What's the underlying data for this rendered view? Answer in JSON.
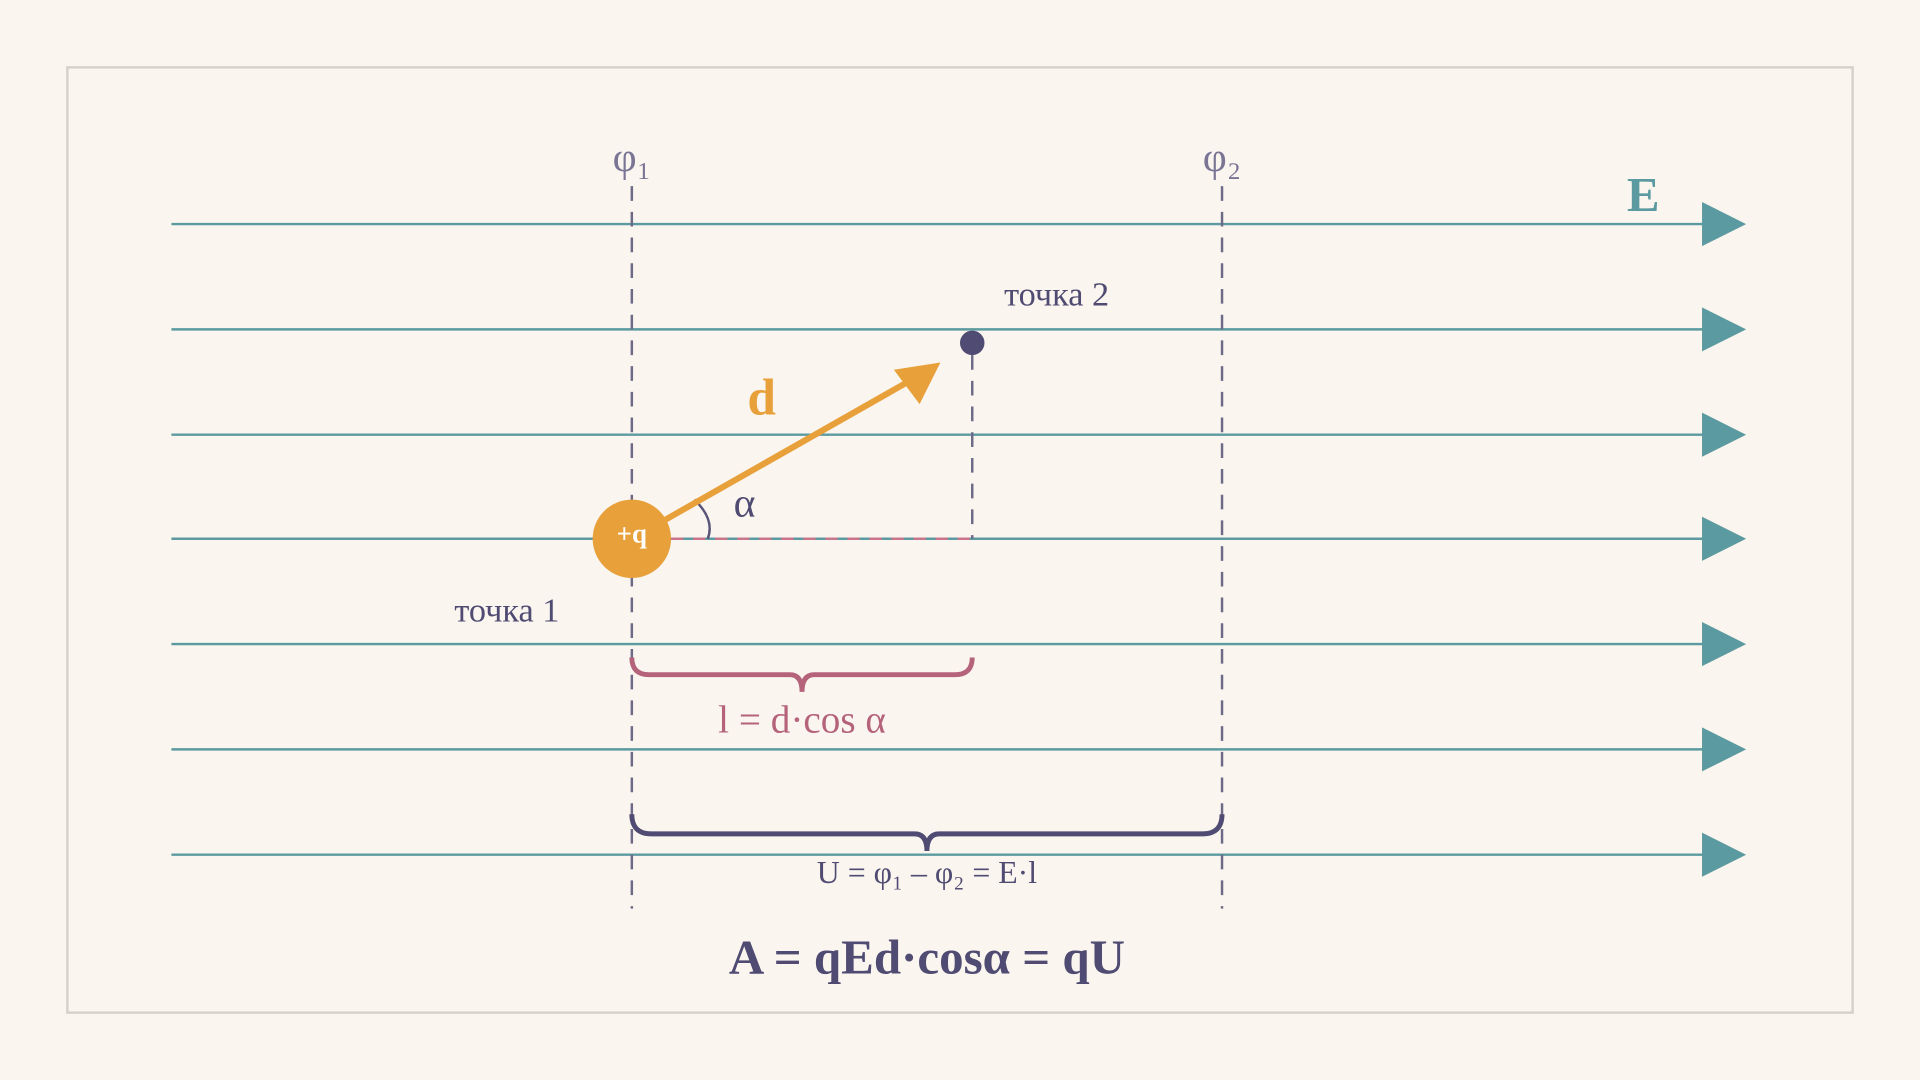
{
  "labels": {
    "phi1": "φ₁",
    "phi2": "φ₂",
    "field": "E",
    "point2": "точка 2",
    "displacement": "d",
    "angle": "α",
    "charge": "+q",
    "point1": "точка 1",
    "projection": "l = d·cos α",
    "voltage": "U = φ₁ – φ₂ = E·l",
    "work": "A = qEd·cosα = qU"
  }
}
